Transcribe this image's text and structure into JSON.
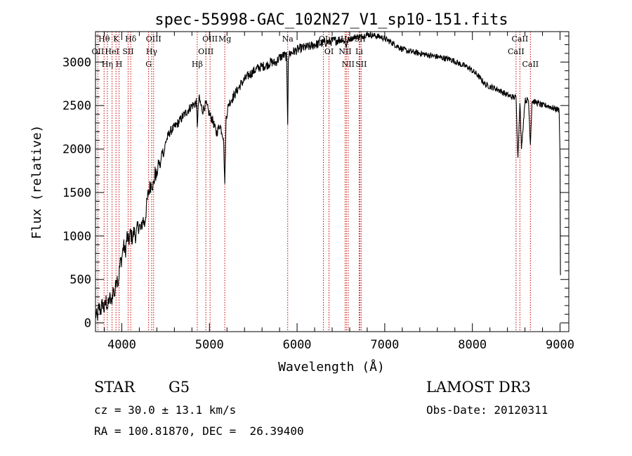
{
  "chart_data": {
    "type": "line",
    "title": "spec-55998-GAC_102N27_V1_sp10-151.fits",
    "xlabel": "Wavelength (Å)",
    "ylabel": "Flux (relative)",
    "xlim": [
      3700,
      9100
    ],
    "ylim": [
      -100,
      3350
    ],
    "x_ticks": [
      4000,
      5000,
      6000,
      7000,
      8000,
      9000
    ],
    "x_tick_labels": [
      "4000",
      "5000",
      "6000",
      "7000",
      "8000",
      "9000"
    ],
    "y_ticks": [
      0,
      500,
      1000,
      1500,
      2000,
      2500,
      3000
    ],
    "y_tick_labels": [
      "0",
      "500",
      "1000",
      "1500",
      "2000",
      "2500",
      "3000"
    ],
    "series": [
      {
        "name": "spectrum",
        "x": [
          3700,
          3720,
          3740,
          3760,
          3780,
          3800,
          3820,
          3840,
          3860,
          3880,
          3900,
          3920,
          3940,
          3960,
          3980,
          4000,
          4020,
          4040,
          4060,
          4080,
          4100,
          4120,
          4140,
          4160,
          4180,
          4200,
          4220,
          4240,
          4260,
          4280,
          4300,
          4320,
          4340,
          4360,
          4380,
          4400,
          4420,
          4440,
          4460,
          4480,
          4500,
          4550,
          4600,
          4650,
          4700,
          4750,
          4800,
          4850,
          4861,
          4880,
          4920,
          4960,
          5000,
          5040,
          5080,
          5120,
          5160,
          5175,
          5190,
          5220,
          5260,
          5300,
          5350,
          5400,
          5450,
          5500,
          5550,
          5600,
          5650,
          5700,
          5750,
          5800,
          5850,
          5880,
          5893,
          5900,
          5920,
          5960,
          6000,
          6050,
          6100,
          6150,
          6200,
          6250,
          6300,
          6350,
          6400,
          6450,
          6500,
          6550,
          6563,
          6580,
          6620,
          6660,
          6700,
          6750,
          6800,
          6850,
          6900,
          6950,
          7000,
          7050,
          7100,
          7150,
          7200,
          7250,
          7300,
          7350,
          7400,
          7450,
          7500,
          7550,
          7600,
          7650,
          7700,
          7750,
          7800,
          7850,
          7900,
          7950,
          8000,
          8050,
          8100,
          8150,
          8200,
          8250,
          8300,
          8350,
          8400,
          8450,
          8498,
          8520,
          8542,
          8560,
          8600,
          8640,
          8662,
          8680,
          8720,
          8760,
          8800,
          8850,
          8900,
          8950,
          8990,
          9000,
          9005
        ],
        "values": [
          100,
          60,
          180,
          140,
          230,
          150,
          260,
          170,
          300,
          220,
          380,
          330,
          540,
          470,
          680,
          740,
          900,
          800,
          1000,
          930,
          1040,
          960,
          1060,
          990,
          1100,
          1120,
          1060,
          1200,
          1130,
          1320,
          1480,
          1560,
          1620,
          1570,
          1720,
          1690,
          1860,
          1790,
          2000,
          1940,
          2080,
          2200,
          2250,
          2310,
          2380,
          2440,
          2500,
          2530,
          2280,
          2590,
          2440,
          2520,
          2400,
          2320,
          2180,
          2280,
          2140,
          1600,
          2360,
          2520,
          2580,
          2650,
          2730,
          2800,
          2850,
          2890,
          2930,
          2950,
          2960,
          3000,
          2990,
          3050,
          3080,
          3060,
          2280,
          3070,
          3100,
          3120,
          3140,
          3160,
          3170,
          3180,
          3200,
          3210,
          3220,
          3230,
          3240,
          3250,
          3260,
          3230,
          3180,
          3260,
          3270,
          3290,
          3290,
          3300,
          3320,
          3310,
          3300,
          3290,
          3270,
          3240,
          3210,
          3180,
          3150,
          3130,
          3120,
          3110,
          3100,
          3090,
          3080,
          3070,
          3060,
          3050,
          3040,
          3030,
          3010,
          2980,
          2960,
          2940,
          2900,
          2860,
          2800,
          2740,
          2720,
          2700,
          2680,
          2650,
          2620,
          2600,
          2590,
          1900,
          2560,
          2000,
          2560,
          2560,
          2050,
          2550,
          2540,
          2520,
          2500,
          2500,
          2480,
          2460,
          2450,
          1900,
          550
        ]
      }
    ],
    "spectral_lines": [
      {
        "label": "Hθ",
        "wavelength": 3798
      },
      {
        "label": "OII",
        "wavelength": 3727
      },
      {
        "label": "Hη",
        "wavelength": 3835
      },
      {
        "label": "K",
        "wavelength": 3934
      },
      {
        "label": "HeI",
        "wavelength": 3889
      },
      {
        "label": "H",
        "wavelength": 3969
      },
      {
        "label": "Hδ",
        "wavelength": 4102
      },
      {
        "label": "SII",
        "wavelength": 4072
      },
      {
        "label": "OIII",
        "wavelength": 4363
      },
      {
        "label": "Hγ",
        "wavelength": 4341
      },
      {
        "label": "G",
        "wavelength": 4306
      },
      {
        "label": "OIII",
        "wavelength": 5007
      },
      {
        "label": "OIII",
        "wavelength": 4959
      },
      {
        "label": "Hβ",
        "wavelength": 4861
      },
      {
        "label": "Mg",
        "wavelength": 5175
      },
      {
        "label": "Na",
        "wavelength": 5893
      },
      {
        "label": "OI",
        "wavelength": 6300
      },
      {
        "label": "OI",
        "wavelength": 6364
      },
      {
        "label": "Hα",
        "wavelength": 6563
      },
      {
        "label": "NII",
        "wavelength": 6548
      },
      {
        "label": "NII",
        "wavelength": 6583
      },
      {
        "label": "SII",
        "wavelength": 6717
      },
      {
        "label": "Li",
        "wavelength": 6708
      },
      {
        "label": "SII",
        "wavelength": 6731
      },
      {
        "label": "CaII",
        "wavelength": 8542
      },
      {
        "label": "CaII",
        "wavelength": 8498
      },
      {
        "label": "CaII",
        "wavelength": 8662
      }
    ]
  },
  "info": {
    "object_class": "STAR",
    "subclass": "G5",
    "survey": "LAMOST DR3",
    "redshift": "cz = 30.0 ± 13.1 km/s",
    "obs_date": "Obs-Date: 20120311",
    "coords": "RA = 100.81870, DEC =  26.39400"
  },
  "colors": {
    "spectrum": "#000000",
    "line_markers": "#cc0000",
    "axes": "#000000"
  }
}
